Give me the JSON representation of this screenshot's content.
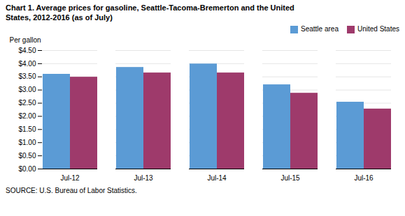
{
  "chart_data": {
    "type": "bar",
    "title": "Chart 1. Average prices for gasoline, Seattle-Tacoma-Bremerton and the United",
    "subtitle": "States, 2012-2016  (as of July)",
    "y_label": "Per gallon",
    "caption": "SOURCE: U.S. Bureau of Labor Statistics.",
    "categories": [
      "Jul-12",
      "Jul-13",
      "Jul-14",
      "Jul-15",
      "Jul-16"
    ],
    "series": [
      {
        "name": "Seattle area",
        "color": "#5B9BD5",
        "values": [
          3.6,
          3.86,
          3.99,
          3.2,
          2.54
        ]
      },
      {
        "name": "United States",
        "color": "#9E3A6B",
        "values": [
          3.49,
          3.65,
          3.65,
          2.88,
          2.28
        ]
      }
    ],
    "ylim": [
      0,
      4.5
    ],
    "yticks": [
      {
        "value": 0.0,
        "label": "$0.00"
      },
      {
        "value": 0.5,
        "label": "$0.50"
      },
      {
        "value": 1.0,
        "label": "$1.00"
      },
      {
        "value": 1.5,
        "label": "$1.50"
      },
      {
        "value": 2.0,
        "label": "$2.00"
      },
      {
        "value": 2.5,
        "label": "$2.50"
      },
      {
        "value": 3.0,
        "label": "$3.00"
      },
      {
        "value": 3.5,
        "label": "$3.50"
      },
      {
        "value": 4.0,
        "label": "$4.00"
      },
      {
        "value": 4.5,
        "label": "$4.50"
      }
    ],
    "grid": true,
    "legend": "upper right"
  }
}
